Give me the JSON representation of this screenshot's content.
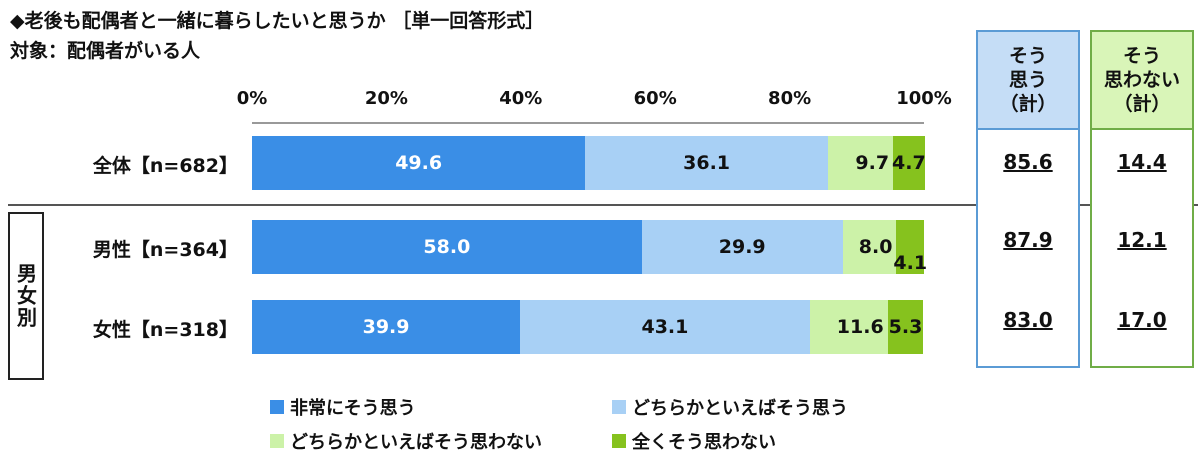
{
  "title": "◆老後も配偶者と一緒に暮らしたいと思うか ［単一回答形式］",
  "subtitle": "対象：配偶者がいる人",
  "chart_data": {
    "type": "bar",
    "orientation": "horizontal",
    "stacked": true,
    "x_ticks": [
      "0%",
      "20%",
      "40%",
      "60%",
      "80%",
      "100%"
    ],
    "xlim": [
      0,
      100
    ],
    "categories": [
      "全体【n=682】",
      "男性【n=364】",
      "女性【n=318】"
    ],
    "group_label": "男女別",
    "series": [
      {
        "name": "非常にそう思う",
        "color": "#3a8ee6",
        "values": [
          49.6,
          58.0,
          39.9
        ]
      },
      {
        "name": "どちらかといえばそう思う",
        "color": "#a8d0f5",
        "values": [
          36.1,
          29.9,
          43.1
        ]
      },
      {
        "name": "どちらかといえばそう思わない",
        "color": "#ccf2a8",
        "values": [
          9.7,
          8.0,
          11.6
        ]
      },
      {
        "name": "全くそう思わない",
        "color": "#86c21e",
        "values": [
          4.7,
          4.1,
          5.3
        ]
      }
    ],
    "summary_columns": [
      {
        "header": "そう\n思う\n（計）",
        "bg": "#c5ddf6",
        "border": "#5b9bd5",
        "values": [
          "85.6",
          "87.9",
          "83.0"
        ]
      },
      {
        "header": "そう\n思わない\n（計）",
        "bg": "#d9f5b8",
        "border": "#70ad47",
        "values": [
          "14.4",
          "12.1",
          "17.0"
        ]
      }
    ],
    "legend_position": "bottom"
  }
}
